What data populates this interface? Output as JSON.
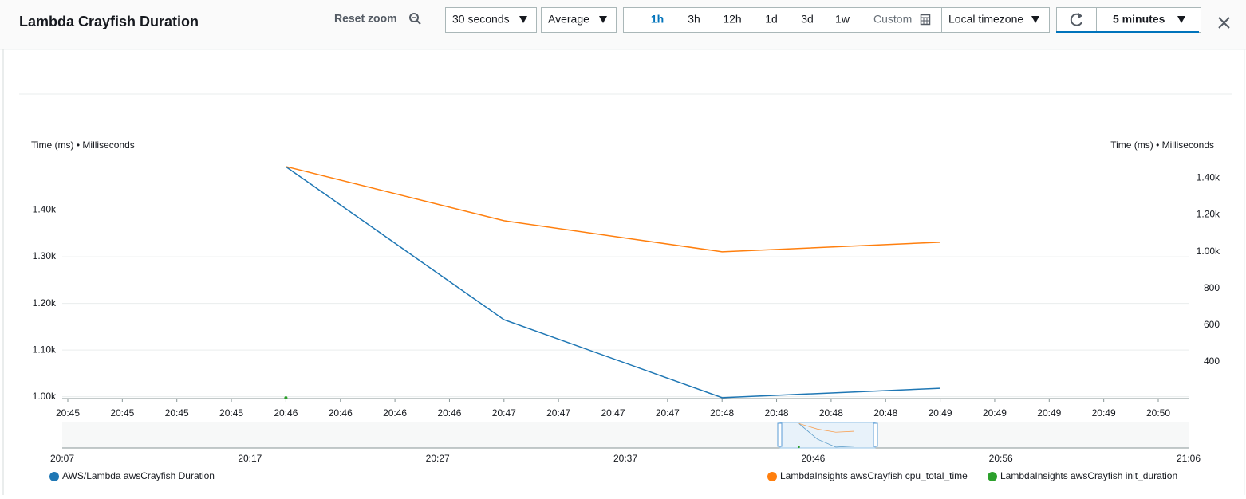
{
  "header": {
    "title": "Lambda Crayfish Duration",
    "reset_zoom": "Reset zoom",
    "period": "30 seconds",
    "statistic": "Average",
    "ranges": [
      "1h",
      "3h",
      "12h",
      "1d",
      "3d",
      "1w"
    ],
    "custom": "Custom",
    "timezone": "Local timezone",
    "refresh_interval": "5 minutes"
  },
  "chart_data": {
    "type": "line",
    "ylabel": "Time (ms) • Milliseconds",
    "y2label": "Time (ms) • Milliseconds",
    "xticks": [
      "20:45",
      "20:45",
      "20:45",
      "20:45",
      "20:46",
      "20:46",
      "20:46",
      "20:46",
      "20:47",
      "20:47",
      "20:47",
      "20:47",
      "20:48",
      "20:48",
      "20:48",
      "20:48",
      "20:49",
      "20:49",
      "20:49",
      "20:49",
      "20:50"
    ],
    "x": [
      "20:46",
      "20:47",
      "20:48",
      "20:49"
    ],
    "ylim": [
      996,
      1500
    ],
    "yticks": [
      {
        "value": 1000,
        "label": "1.00k"
      },
      {
        "value": 1100,
        "label": "1.10k"
      },
      {
        "value": 1200,
        "label": "1.20k"
      },
      {
        "value": 1300,
        "label": "1.30k"
      },
      {
        "value": 1400,
        "label": "1.40k"
      }
    ],
    "y2lim": [
      200,
      1480
    ],
    "y2ticks": [
      400,
      600,
      800,
      {
        "value": 1000,
        "label": "1.00k"
      },
      {
        "value": 1200,
        "label": "1.20k"
      },
      {
        "value": 1400,
        "label": "1.40k"
      }
    ],
    "grid": true,
    "series": [
      {
        "name": "AWS/Lambda awsCrayfish Duration",
        "color": "#1f77b4",
        "values": [
          1493,
          1165,
          998,
          1018
        ]
      },
      {
        "name": "LambdaInsights awsCrayfish cpu_total_time",
        "color": "#ff7f0e",
        "axis": "y2",
        "values": [
          1463,
          1168,
          999,
          1051
        ]
      },
      {
        "name": "LambdaInsights awsCrayfish init_duration",
        "color": "#2ca02c",
        "axis": "y2",
        "values": [
          204,
          null,
          null,
          null
        ]
      }
    ],
    "overview_xticks": [
      "20:07",
      "20:17",
      "20:27",
      "20:37",
      "20:46",
      "20:56",
      "21:06"
    ]
  }
}
